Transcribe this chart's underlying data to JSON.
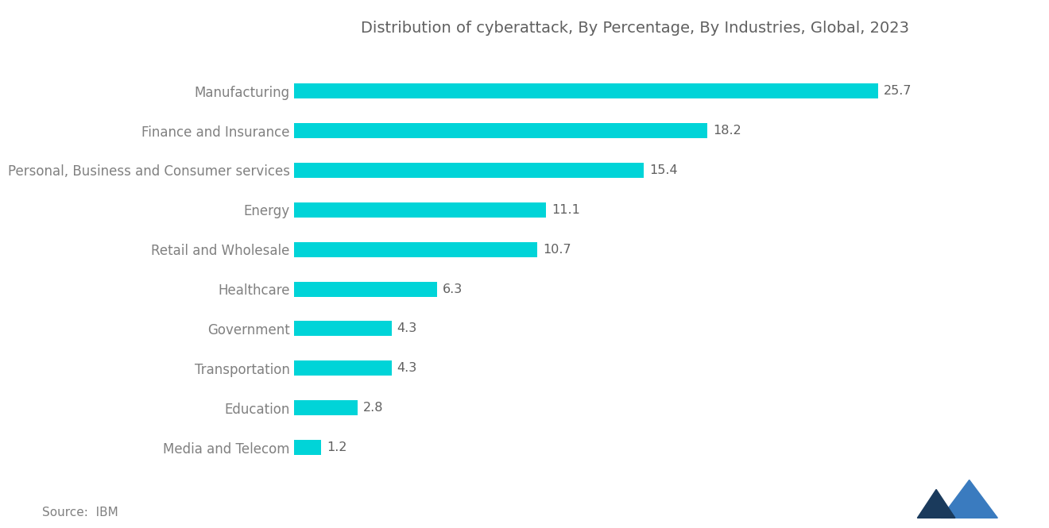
{
  "title": "Distribution of cyberattack, By Percentage, By Industries, Global, 2023",
  "categories": [
    "Media and Telecom",
    "Education",
    "Transportation",
    "Government",
    "Healthcare",
    "Retail and Wholesale",
    "Energy",
    "Personal, Business and Consumer services",
    "Finance and Insurance",
    "Manufacturing"
  ],
  "values": [
    1.2,
    2.8,
    4.3,
    4.3,
    6.3,
    10.7,
    11.1,
    15.4,
    18.2,
    25.7
  ],
  "bar_color": "#00D4D8",
  "label_color": "#808080",
  "title_color": "#606060",
  "value_label_color": "#606060",
  "source_text": "Source:  IBM",
  "background_color": "#ffffff",
  "xlim": [
    0,
    30
  ],
  "bar_height": 0.38,
  "title_fontsize": 14,
  "label_fontsize": 12,
  "value_fontsize": 11.5,
  "source_fontsize": 11,
  "logo_color1": "#1a3a5c",
  "logo_color2": "#3a7bbf"
}
